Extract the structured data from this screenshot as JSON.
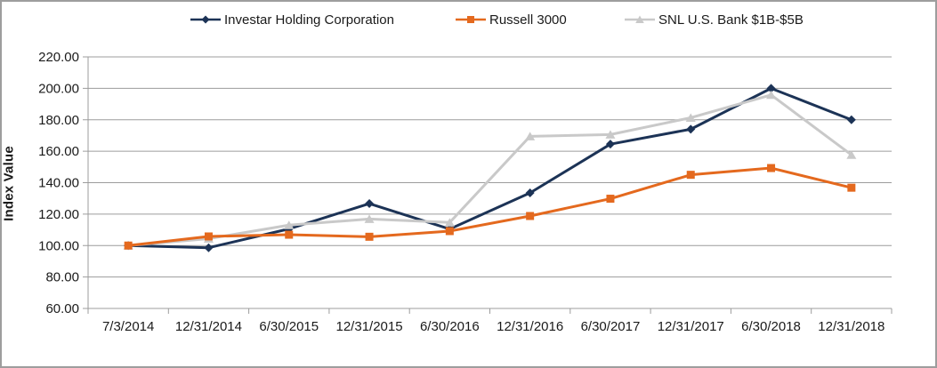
{
  "window": {
    "background": "#ffffff",
    "border_color": "#9d9d9d"
  },
  "chart_data": {
    "type": "line",
    "title": "",
    "xlabel": "",
    "ylabel": "Index Value",
    "ylim": [
      60,
      220
    ],
    "ytick_step": 20,
    "ytick_labels": [
      "220.00",
      "200.00",
      "180.00",
      "160.00",
      "140.00",
      "120.00",
      "100.00",
      "80.00",
      "60.00"
    ],
    "grid": "horizontal-only",
    "grid_color": "#9c9c9c",
    "axis_color": "#9c9c9c",
    "text_color": "#1a1a1a",
    "legend_position": "top-center",
    "categories": [
      "7/3/2014",
      "12/31/2014",
      "6/30/2015",
      "12/31/2015",
      "6/30/2016",
      "12/31/2016",
      "6/30/2017",
      "12/31/2017",
      "6/30/2018",
      "12/31/2018"
    ],
    "series": [
      {
        "name": "Investar Holding Corporation",
        "color": "#1c3356",
        "marker": "diamond",
        "values": [
          100.0,
          98.6,
          110.6,
          126.7,
          110.5,
          133.5,
          164.5,
          174.0,
          200.0,
          180.0
        ]
      },
      {
        "name": "Russell 3000",
        "color": "#e4691e",
        "marker": "square",
        "values": [
          100.0,
          105.8,
          106.9,
          105.6,
          109.2,
          118.8,
          129.8,
          145.0,
          149.3,
          136.8
        ]
      },
      {
        "name": "SNL U.S. Bank $1B-$5B",
        "color": "#c9c9c9",
        "marker": "triangle",
        "values": [
          100.0,
          104.4,
          113.0,
          116.9,
          114.7,
          169.5,
          170.6,
          181.3,
          195.8,
          157.7
        ]
      }
    ],
    "draw_order": [
      0,
      2,
      1
    ],
    "legend_x_positions": [
      212,
      510,
      700
    ]
  }
}
